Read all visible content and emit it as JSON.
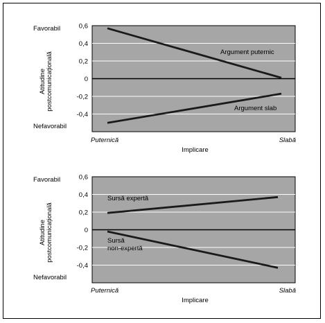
{
  "colors": {
    "plot_bg": "#a6a6a6",
    "grid": "#ffffff",
    "line": "#1a1a1a",
    "frame": "#000000"
  },
  "chart_data": [
    {
      "type": "line",
      "title": "",
      "xlabel": "Implicare",
      "ylabel_lines": [
        "Atitudine",
        "postcomunicațională"
      ],
      "y_tick_labels": [
        "0,6",
        "0,4",
        "0,2",
        "0",
        "-0,2",
        "-0,4"
      ],
      "y_ticks": [
        0.6,
        0.4,
        0.2,
        0,
        -0.2,
        -0.4
      ],
      "ylim": [
        -0.6,
        0.6
      ],
      "x_categories": [
        "Puternică",
        "Slabă"
      ],
      "y_anchor_labels": {
        "top": "Favorabil",
        "bottom": "Nefavorabil"
      },
      "grid": true,
      "series": [
        {
          "name": "Argument puternic",
          "values": [
            0.57,
            0.01
          ]
        },
        {
          "name": "Argument slab",
          "values": [
            -0.5,
            -0.17
          ]
        }
      ]
    },
    {
      "type": "line",
      "title": "",
      "xlabel": "Implicare",
      "ylabel_lines": [
        "Atitudine",
        "postcomunicațională"
      ],
      "y_tick_labels": [
        "0,6",
        "0,4",
        "0,2",
        "0",
        "-0,2",
        "-0,4"
      ],
      "y_ticks": [
        0.6,
        0.4,
        0.2,
        0,
        -0.2,
        -0.4
      ],
      "ylim": [
        -0.6,
        0.6
      ],
      "x_categories": [
        "Puternică",
        "Slabă"
      ],
      "y_anchor_labels": {
        "top": "Favorabil",
        "bottom": "Nefavorabil"
      },
      "grid": true,
      "series": [
        {
          "name": "Sursă expertă",
          "values": [
            0.19,
            0.37
          ]
        },
        {
          "name_lines": [
            "Sursă",
            "non-expertă"
          ],
          "values": [
            -0.02,
            -0.43
          ]
        }
      ]
    }
  ]
}
